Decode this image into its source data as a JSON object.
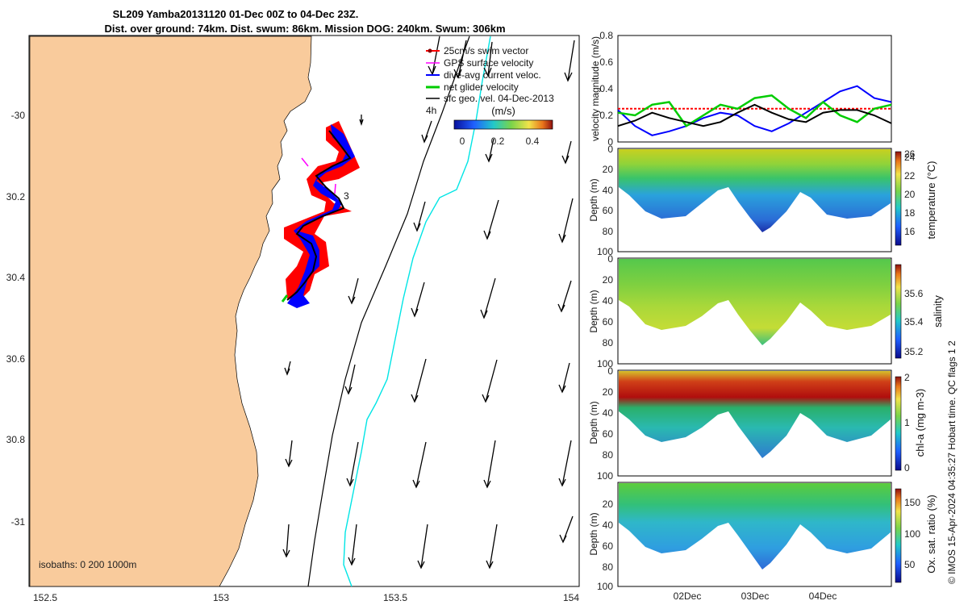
{
  "title": {
    "line1": "SL209 Yamba20131120 01-Dec 00Z to 04-Dec 23Z.",
    "line2": "Dist. over ground: 74km. Dist. swum: 86km. Mission DOG: 240km. Swum: 306km"
  },
  "map": {
    "x_ticks": [
      "152.5",
      "153",
      "153.5",
      "154"
    ],
    "y_ticks": [
      "-30",
      "30.2",
      "30.4",
      "30.6",
      "30.8",
      "-31"
    ],
    "legend": [
      "25cm/s swim vector",
      "GPS surface velocity",
      "dive-avg current veloc.",
      "net glider velocity",
      "sfc geo. vel. 04-Dec-2013"
    ],
    "inset_label": "4h",
    "inset_label2": "3",
    "colorbar_title": "(m/s)",
    "colorbar_ticks": [
      "0",
      "0.2",
      "0.4"
    ],
    "isobaths": "isobaths: 0   200  1000m",
    "colors": {
      "land": "#f9cb9c",
      "swim": "#ff0000",
      "gps": "#ff00ff",
      "dive": "#0000ff",
      "net": "#00cc00",
      "sfc": "#000000",
      "isobath200": "#000000",
      "isobath1000": "#00e5e5"
    }
  },
  "velocity_panel": {
    "ylabel": "velocity magnitude (m/s)",
    "y_ticks": [
      "0",
      "0.2",
      "0.4",
      "0.6",
      "0.8"
    ]
  },
  "section_panels": [
    {
      "ylabel": "Depth (m)",
      "y_ticks": [
        "0",
        "20",
        "40",
        "60",
        "80",
        "100"
      ],
      "cbar_label": "temperature (°C)",
      "cbar_ticks": [
        "16",
        "18",
        "20",
        "22",
        "24",
        "26"
      ]
    },
    {
      "ylabel": "Depth (m)",
      "y_ticks": [
        "0",
        "20",
        "40",
        "60",
        "80",
        "100"
      ],
      "cbar_label": "salinity",
      "cbar_ticks": [
        "35.2",
        "35.4",
        "35.6"
      ]
    },
    {
      "ylabel": "Depth (m)",
      "y_ticks": [
        "0",
        "20",
        "40",
        "60",
        "80",
        "100"
      ],
      "cbar_label": "chl-a (mg m-3)",
      "cbar_ticks": [
        "0",
        "1",
        "2"
      ]
    },
    {
      "ylabel": "Depth (m)",
      "y_ticks": [
        "20",
        "40",
        "60",
        "80",
        "100"
      ],
      "cbar_label": "Ox. sat. ratio (%)",
      "cbar_ticks": [
        "50",
        "100",
        "150"
      ]
    }
  ],
  "time_ticks": [
    "02Dec",
    "03Dec",
    "04Dec"
  ],
  "side_note": "© IMOS 15-Apr-2024 04:35:27 Hobart time. QC flags 1  2",
  "chart_data": [
    {
      "type": "line",
      "title": "velocity magnitude",
      "ylabel": "velocity magnitude (m/s)",
      "ylim": [
        0,
        0.8
      ],
      "x_days": [
        0,
        0.25,
        0.5,
        0.75,
        1.0,
        1.25,
        1.5,
        1.75,
        2.0,
        2.25,
        2.5,
        2.75,
        3.0,
        3.25,
        3.5,
        3.75,
        4.0
      ],
      "series": [
        {
          "color": "#ff0000",
          "values": [
            0.25,
            0.25,
            0.25,
            0.25,
            0.25,
            0.25,
            0.25,
            0.25,
            0.25,
            0.25,
            0.25,
            0.25,
            0.25,
            0.25,
            0.25,
            0.25,
            0.25
          ]
        },
        {
          "color": "#0000ff",
          "values": [
            0.24,
            0.12,
            0.05,
            0.08,
            0.12,
            0.18,
            0.22,
            0.2,
            0.12,
            0.08,
            0.14,
            0.22,
            0.3,
            0.38,
            0.42,
            0.33,
            0.3
          ]
        },
        {
          "color": "#00cc00",
          "values": [
            0.22,
            0.2,
            0.28,
            0.3,
            0.12,
            0.2,
            0.28,
            0.25,
            0.33,
            0.35,
            0.25,
            0.18,
            0.3,
            0.2,
            0.15,
            0.25,
            0.28
          ]
        },
        {
          "color": "#000000",
          "values": [
            0.12,
            0.16,
            0.22,
            0.18,
            0.15,
            0.12,
            0.15,
            0.22,
            0.28,
            0.22,
            0.17,
            0.15,
            0.22,
            0.24,
            0.24,
            0.2,
            0.14
          ]
        }
      ]
    }
  ]
}
